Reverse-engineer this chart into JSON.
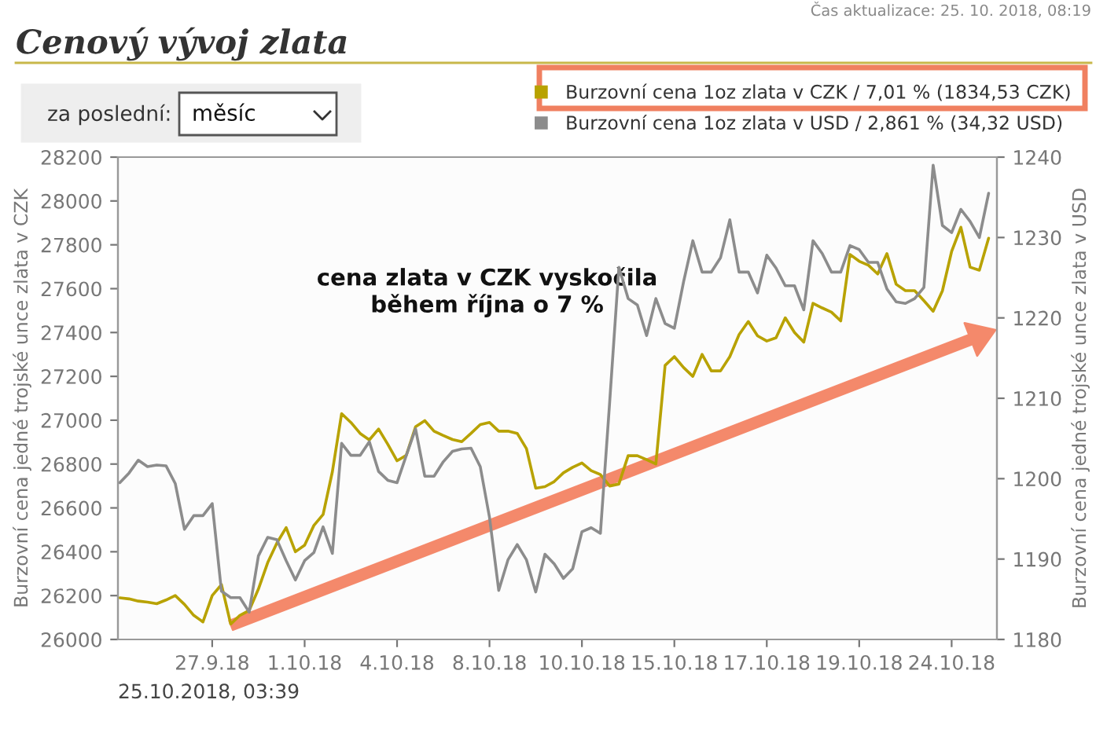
{
  "chart_data": {
    "type": "line",
    "title": "Cenový vývoj zlata",
    "ylabel": "Burzovní cena jedné trojské unce zlata v CZK",
    "y2label": "Burzovní cena jedné trojské unce zlata v USD",
    "annotations": [
      "cena zlata v CZK vyskočila během října o 7 %",
      "25.10.2018, 03:39",
      "Čas aktualizace: 25. 10. 2018, 08:19",
      "za poslední:",
      "měsíc"
    ],
    "categories": [
      null,
      null,
      null,
      null,
      null,
      null,
      null,
      null,
      null,
      null,
      "27.9.18",
      null,
      null,
      null,
      null,
      null,
      null,
      null,
      null,
      null,
      "1.10.18",
      null,
      null,
      null,
      null,
      null,
      null,
      null,
      null,
      null,
      "4.10.18",
      null,
      null,
      null,
      null,
      null,
      null,
      null,
      null,
      null,
      "8.10.18",
      null,
      null,
      null,
      null,
      null,
      null,
      null,
      null,
      null,
      "10.10.18",
      null,
      null,
      null,
      null,
      null,
      null,
      null,
      null,
      null,
      "15.10.18",
      null,
      null,
      null,
      null,
      null,
      null,
      null,
      null,
      null,
      "17.10.18",
      null,
      null,
      null,
      null,
      null,
      null,
      null,
      null,
      null,
      "19.10.18",
      null,
      null,
      null,
      null,
      null,
      null,
      null,
      null,
      null,
      "24.10.18",
      null,
      null,
      null,
      null
    ],
    "ylim": [
      26000,
      28200
    ],
    "yticks": [
      26000,
      26200,
      26400,
      26600,
      26800,
      27000,
      27200,
      27400,
      27600,
      27800,
      28000,
      28200
    ],
    "y2lim": [
      1180,
      1240
    ],
    "y2ticks": [
      1180,
      1190,
      1200,
      1210,
      1220,
      1230,
      1240
    ],
    "legend": "top right",
    "grid": false,
    "marker": "none",
    "line_style": "solid",
    "series": [
      {
        "name": "Burzovní cena 1oz zlata v CZK / 7,01 % (1834,53 CZK)",
        "color": "#b8a200",
        "values": [
          26190,
          26185,
          26175,
          26170,
          26163,
          26180,
          26200,
          26160,
          26110,
          26080,
          26200,
          26250,
          26070,
          26110,
          26132,
          26230,
          26350,
          26440,
          26510,
          26400,
          26430,
          26520,
          26570,
          26765,
          27030,
          26990,
          26940,
          26910,
          26960,
          26890,
          26815,
          26840,
          26970,
          26998,
          26950,
          26930,
          26912,
          26902,
          26940,
          26980,
          26990,
          26950,
          26950,
          26940,
          26870,
          26690,
          26697,
          26720,
          26760,
          26785,
          26805,
          26770,
          26752,
          26700,
          26709,
          26838,
          26838,
          26820,
          26800,
          27250,
          27290,
          27240,
          27200,
          27300,
          27225,
          27225,
          27290,
          27390,
          27450,
          27385,
          27361,
          27376,
          27467,
          27400,
          27356,
          27533,
          27512,
          27493,
          27453,
          27756,
          27725,
          27707,
          27667,
          27760,
          27620,
          27591,
          27591,
          27545,
          27497,
          27590,
          27770,
          27880,
          27698,
          27684,
          27830
        ]
      },
      {
        "name": "Burzovní cena 1oz zlata v USD / 2,861 % (34,32 USD)",
        "color": "#8c8c8c",
        "axis": "y2",
        "values": [
          1199.5,
          1200.7,
          1202.3,
          1201.5,
          1201.7,
          1201.6,
          1199.4,
          1193.7,
          1195.4,
          1195.4,
          1196.9,
          1186.0,
          1185.2,
          1185.2,
          1183.4,
          1190.4,
          1192.7,
          1192.4,
          1189.8,
          1187.4,
          1189.8,
          1190.8,
          1194.0,
          1190.7,
          1204.4,
          1202.9,
          1202.9,
          1204.6,
          1200.9,
          1199.8,
          1199.5,
          1202.9,
          1206.2,
          1200.3,
          1200.3,
          1202.1,
          1203.4,
          1203.7,
          1203.8,
          1201.5,
          1195.2,
          1186.1,
          1189.9,
          1191.8,
          1189.9,
          1185.9,
          1190.6,
          1189.4,
          1187.6,
          1188.8,
          1193.4,
          1193.9,
          1193.2,
          1209.5,
          1226.3,
          1222.4,
          1221.6,
          1217.8,
          1222.4,
          1219.3,
          1218.7,
          1224.5,
          1229.6,
          1225.7,
          1225.7,
          1227.5,
          1232.2,
          1225.7,
          1225.7,
          1223.1,
          1227.8,
          1226.2,
          1224.0,
          1224.0,
          1221.0,
          1229.6,
          1228.0,
          1225.7,
          1225.7,
          1229.0,
          1228.5,
          1226.9,
          1226.9,
          1223.6,
          1222.0,
          1221.8,
          1222.4,
          1223.8,
          1239.0,
          1231.5,
          1230.6,
          1233.5,
          1232.0,
          1230.0,
          1235.5
        ]
      }
    ]
  }
}
